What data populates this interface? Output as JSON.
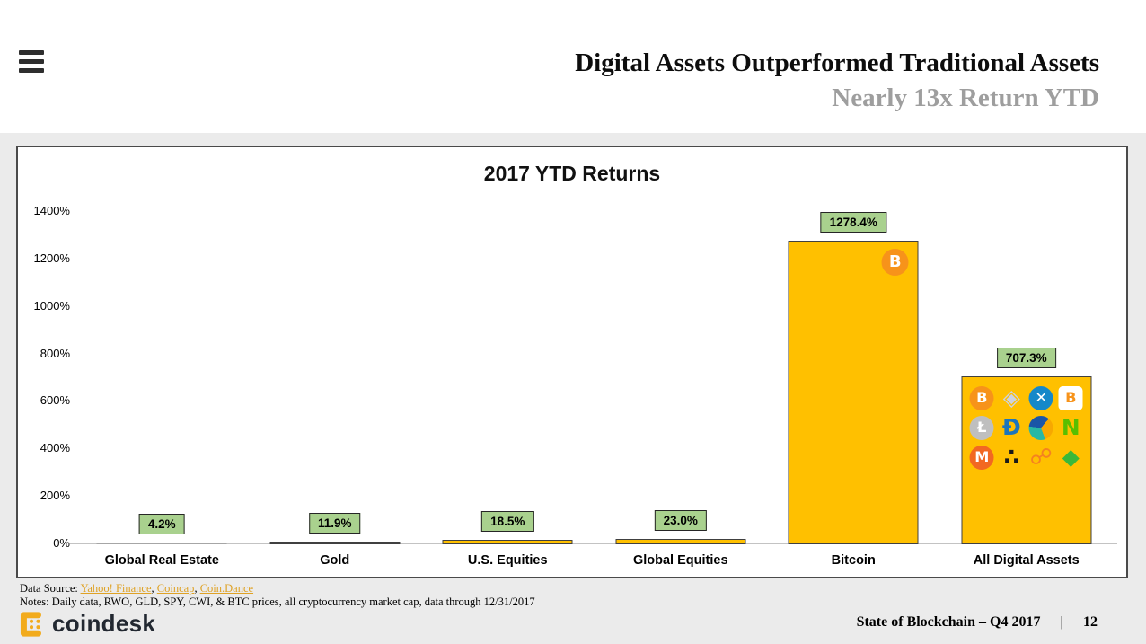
{
  "header": {
    "title": "Digital Assets Outperformed Traditional Assets",
    "subtitle": "Nearly 13x Return YTD"
  },
  "chart_data": {
    "type": "bar",
    "title": "2017 YTD Returns",
    "categories": [
      "Global Real Estate",
      "Gold",
      "U.S. Equities",
      "Global Equities",
      "Bitcoin",
      "All Digital Assets"
    ],
    "values": [
      4.2,
      11.9,
      18.5,
      23.0,
      1278.4,
      707.3
    ],
    "labels": [
      "4.2%",
      "11.9%",
      "18.5%",
      "23.0%",
      "1278.4%",
      "707.3%"
    ],
    "ylim": [
      0,
      1400
    ],
    "yticks": [
      "0%",
      "200%",
      "400%",
      "600%",
      "800%",
      "1000%",
      "1200%",
      "1400%"
    ],
    "grid": false,
    "legend": false,
    "bar_colors": [
      "#a6a6a6",
      "#ffc000",
      "#ffc000",
      "#ffc000",
      "#ffc000",
      "#ffc000"
    ],
    "bar_border": "#404040",
    "label_box": {
      "bg": "#a9d18e",
      "border": "#262626"
    },
    "bar_icons": [
      [],
      [],
      [],
      [],
      [
        "bitcoin"
      ],
      [
        "bitcoin",
        "ethereum",
        "ripple",
        "bitcoin-cash",
        "litecoin",
        "dash",
        "nem",
        "neo",
        "monero",
        "iota",
        "share-network",
        "ethereum-classic"
      ]
    ]
  },
  "icon_defs": {
    "bitcoin": {
      "glyph": "B",
      "bg": "#f7931a",
      "fg": "#ffffff",
      "shape": "circle"
    },
    "ethereum": {
      "glyph": "◈",
      "bg": "transparent",
      "fg": "#ccd2e2",
      "shape": "plain"
    },
    "ripple": {
      "glyph": "✕",
      "bg": "#1588c9",
      "fg": "#ffffff",
      "shape": "circle"
    },
    "bitcoin-cash": {
      "glyph": "B",
      "bg": "#ffffff",
      "fg": "#f7931a",
      "shape": "square"
    },
    "litecoin": {
      "glyph": "Ł",
      "bg": "#bfbfbf",
      "fg": "#ffffff",
      "shape": "circle"
    },
    "dash": {
      "glyph": "Đ",
      "bg": "transparent",
      "fg": "#1c75bc",
      "shape": "plain"
    },
    "nem": {
      "glyph": "",
      "bg": "conic-gradient(from 40deg, #f7a800 0 33%, #28b8a4 33% 66%, #1a56a7 66% 100%)",
      "fg": "#ffffff",
      "shape": "circle"
    },
    "neo": {
      "glyph": "N",
      "bg": "transparent",
      "fg": "#58bf00",
      "shape": "plain"
    },
    "monero": {
      "glyph": "M",
      "bg": "#f26822",
      "fg": "#ffffff",
      "shape": "circle"
    },
    "iota": {
      "glyph": "∴",
      "bg": "transparent",
      "fg": "#1a1a1a",
      "shape": "plain"
    },
    "share-network": {
      "glyph": "☍",
      "bg": "transparent",
      "fg": "#f58220",
      "shape": "plain"
    },
    "ethereum-classic": {
      "glyph": "◆",
      "bg": "transparent",
      "fg": "#3ab83a",
      "shape": "plain"
    }
  },
  "footer": {
    "data_source_label": "Data Source: ",
    "links": [
      "Yahoo! Finance",
      "Coincap",
      "Coin.Dance"
    ],
    "separator": ", ",
    "notes": "Notes: Daily data, RWO, GLD, SPY, CWI, & BTC prices, all cryptocurrency market cap, data through 12/31/2017",
    "brand": "coindesk",
    "page_label": "State of Blockchain – Q4 2017",
    "page_separator": "|",
    "page_number": "12",
    "brand_gold": "#f2ab1c"
  }
}
